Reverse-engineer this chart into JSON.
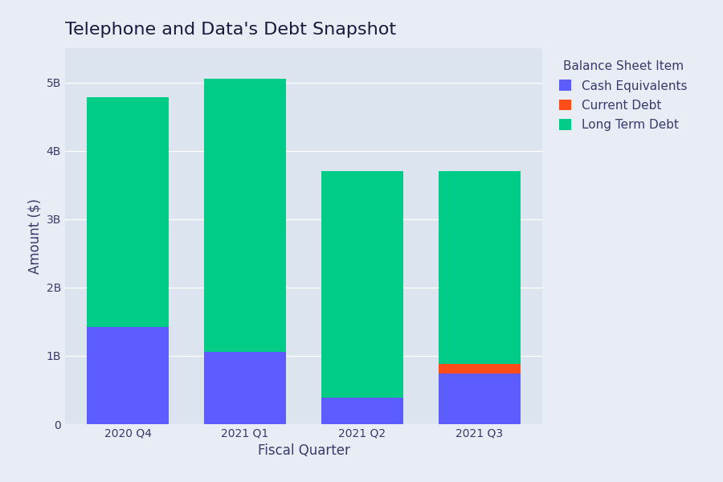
{
  "title": "Telephone and Data's Debt Snapshot",
  "xlabel": "Fiscal Quarter",
  "ylabel": "Amount ($)",
  "categories": [
    "2020 Q4",
    "2021 Q1",
    "2021 Q2",
    "2021 Q3"
  ],
  "cash_equivalents": [
    1420000000,
    1060000000,
    390000000,
    740000000
  ],
  "current_debt": [
    0,
    0,
    0,
    140000000
  ],
  "long_term_debt": [
    3360000000,
    3990000000,
    3310000000,
    2820000000
  ],
  "colors": {
    "cash_equivalents": "#5c5cff",
    "current_debt": "#ff4d1a",
    "long_term_debt": "#00cc88"
  },
  "legend_title": "Balance Sheet Item",
  "legend_labels": [
    "Cash Equivalents",
    "Current Debt",
    "Long Term Debt"
  ],
  "plot_background_color": "#dce4f0",
  "fig_background_color": "#e8edf5",
  "ylim": [
    0,
    5500000000
  ],
  "yticks": [
    0,
    1000000000,
    2000000000,
    3000000000,
    4000000000,
    5000000000
  ],
  "ytick_labels": [
    "0",
    "1B",
    "2B",
    "3B",
    "4B",
    "5B"
  ],
  "title_fontsize": 16,
  "axis_label_fontsize": 12,
  "tick_fontsize": 10,
  "legend_fontsize": 11,
  "bar_width": 0.7
}
